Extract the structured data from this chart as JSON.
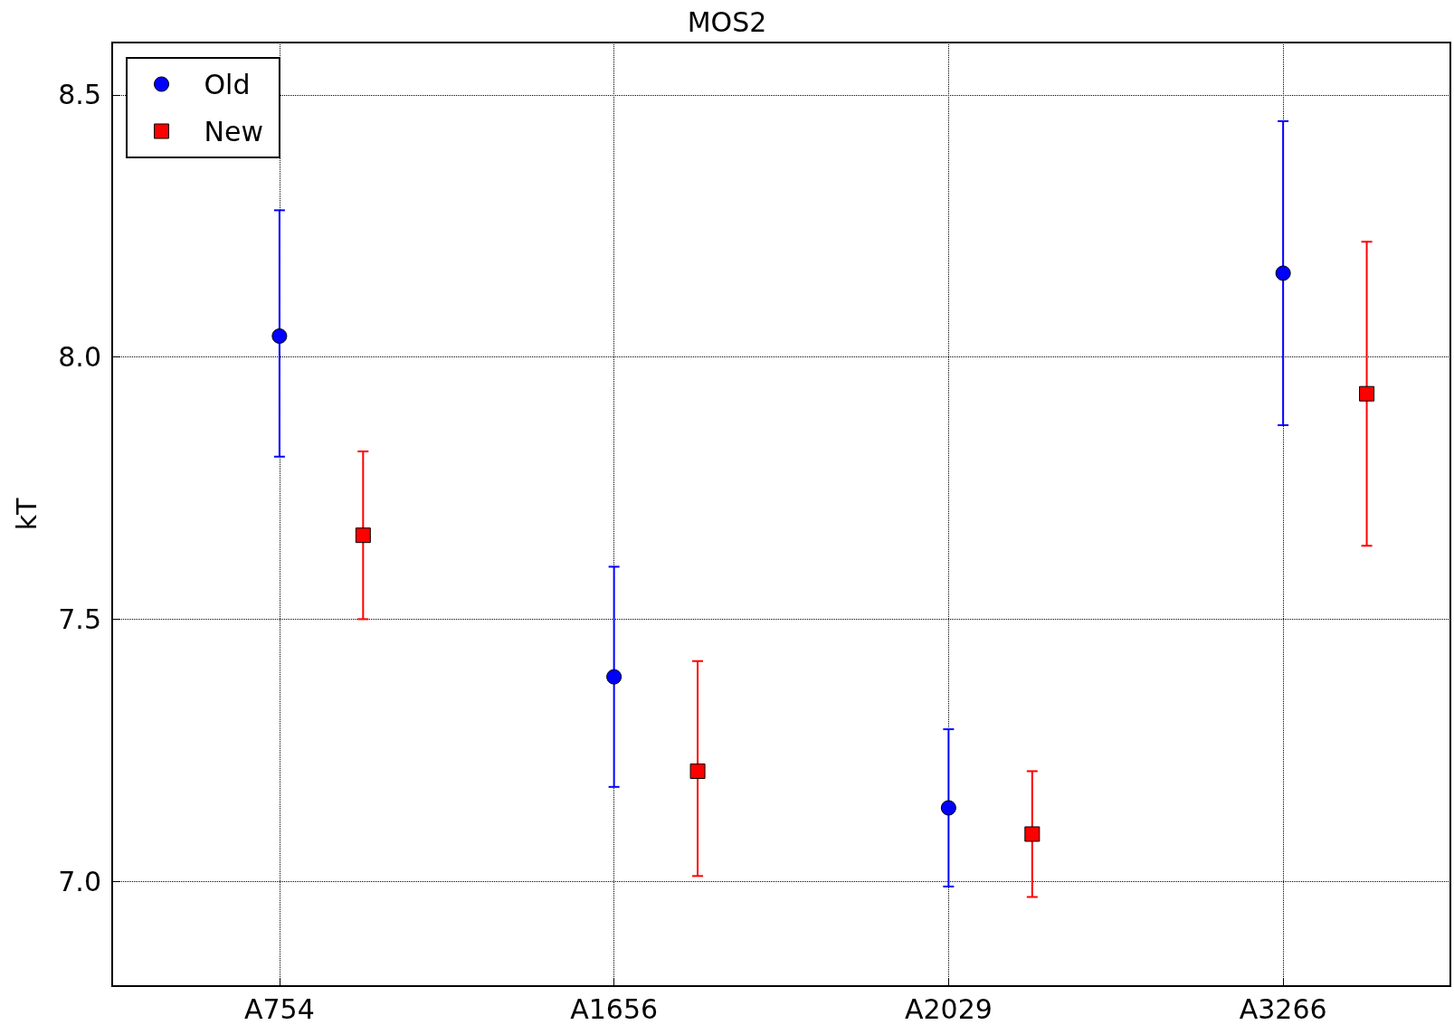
{
  "chart_data": {
    "type": "scatter",
    "title": "MOS2",
    "ylabel": "kT",
    "categories": [
      "A754",
      "A1656",
      "A2029",
      "A3266"
    ],
    "ylim": [
      6.8,
      8.6
    ],
    "yticks": [
      {
        "value": 7.0,
        "label": "7.0"
      },
      {
        "value": 7.5,
        "label": "7.5"
      },
      {
        "value": 8.0,
        "label": "8.0"
      },
      {
        "value": 8.5,
        "label": "8.5"
      }
    ],
    "series": [
      {
        "name": "Old",
        "color": "#0000ff",
        "marker": "circle",
        "values": [
          8.04,
          7.39,
          7.14,
          8.16
        ],
        "errors": [
          [
            7.81,
            8.28
          ],
          [
            7.18,
            7.6
          ],
          [
            6.99,
            7.29
          ],
          [
            7.87,
            8.45
          ]
        ]
      },
      {
        "name": "New",
        "color": "#ff0000",
        "marker": "square",
        "values": [
          7.66,
          7.21,
          7.09,
          7.93
        ],
        "errors": [
          [
            7.5,
            7.82
          ],
          [
            7.01,
            7.42
          ],
          [
            6.97,
            7.21
          ],
          [
            7.64,
            8.22
          ]
        ]
      }
    ],
    "grid": true,
    "line_style": "dotted",
    "legend": "top left"
  }
}
